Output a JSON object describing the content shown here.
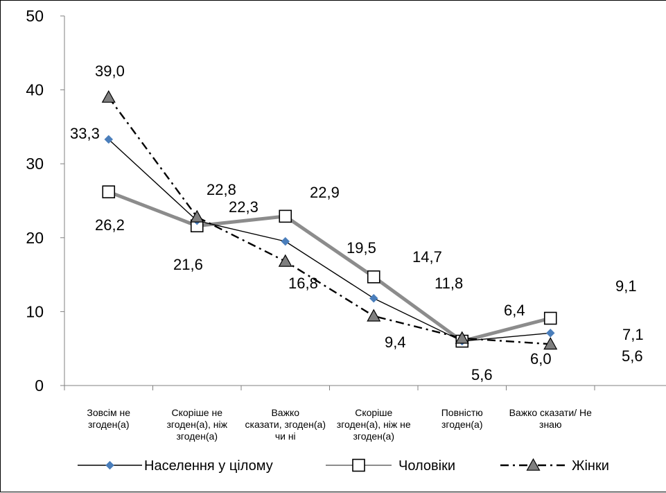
{
  "chart_data": {
    "type": "line",
    "categories": [
      [
        "Зовсім не",
        "згоден(а)"
      ],
      [
        "Скоріше не",
        "згоден(а), ніж",
        "згоден(а)"
      ],
      [
        "Важко",
        "сказати, згоден(а)",
        "чи ні"
      ],
      [
        "Скоріше",
        "згоден(а), ніж не",
        "згоден(а)"
      ],
      [
        "Повністю",
        "згоден(а)"
      ],
      [
        "Важко сказати/ Не",
        "знаю"
      ]
    ],
    "ylim": [
      0,
      50
    ],
    "yticks": [
      "0",
      "10",
      "20",
      "30",
      "40",
      "50"
    ],
    "grid": false,
    "legend_position": "bottom",
    "series": [
      {
        "name": "Населення у цілому",
        "values": [
          33.3,
          22.3,
          19.5,
          11.8,
          6.0,
          7.1
        ],
        "labels": [
          "33,3",
          "22,3",
          "19,5",
          "11,8",
          "6,0",
          "7,1"
        ],
        "color": "#000000",
        "marker": "diamond",
        "marker_color": "#4a7ebb",
        "line_style": "solid"
      },
      {
        "name": "Чоловіки",
        "values": [
          26.2,
          21.6,
          22.9,
          14.7,
          6.0,
          9.1
        ],
        "labels": [
          "26,2",
          "21,6",
          "22,9",
          "14,7",
          "",
          "9,1"
        ],
        "color": "#8c8c8c",
        "marker": "square-open",
        "marker_color": "#000000",
        "line_style": "solid-thick"
      },
      {
        "name": "Жінки",
        "values": [
          39.0,
          22.8,
          16.8,
          9.4,
          6.4,
          5.6
        ],
        "labels": [
          "39,0",
          "22,8",
          "16,8",
          "9,4",
          "6,4",
          "5,6"
        ],
        "color": "#000000",
        "marker": "triangle",
        "marker_color": "#7f7f7f",
        "line_style": "dashdot"
      }
    ],
    "extra_labels": [
      "5,6"
    ]
  }
}
